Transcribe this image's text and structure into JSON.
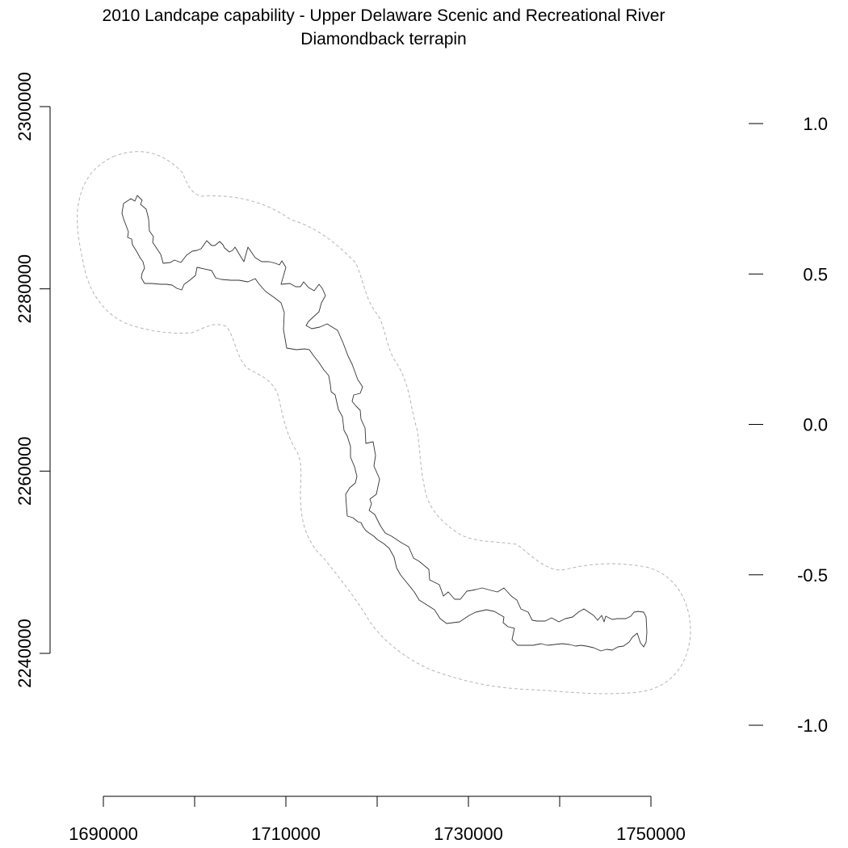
{
  "title": {
    "line1": "2010 Landcape capability - Upper Delaware Scenic and Recreational River",
    "line2": "Diamondback terrapin"
  },
  "map": {
    "x_axis": {
      "ticks": [
        1690000,
        1700000,
        1710000,
        1720000,
        1730000,
        1740000,
        1750000
      ],
      "labels": [
        "1690000",
        "1710000",
        "1730000",
        "1750000"
      ],
      "range": [
        1690000,
        1750000
      ]
    },
    "y_axis": {
      "ticks": [
        2240000,
        2260000,
        2280000,
        2300000
      ],
      "labels": [
        "2240000",
        "2260000",
        "2280000",
        "2300000"
      ],
      "range": [
        2240000,
        2300000
      ]
    },
    "legend_scale": {
      "labels": [
        "1.0",
        "0.5",
        "0.0",
        "-0.5",
        "-1.0"
      ],
      "values": [
        1.0,
        0.5,
        0.0,
        -0.5,
        -1.0
      ]
    },
    "features": {
      "park_boundary": {
        "style": "solid",
        "color": "#333333"
      },
      "buffer_boundary": {
        "style": "dashed",
        "color": "#b5b5b5"
      }
    }
  }
}
